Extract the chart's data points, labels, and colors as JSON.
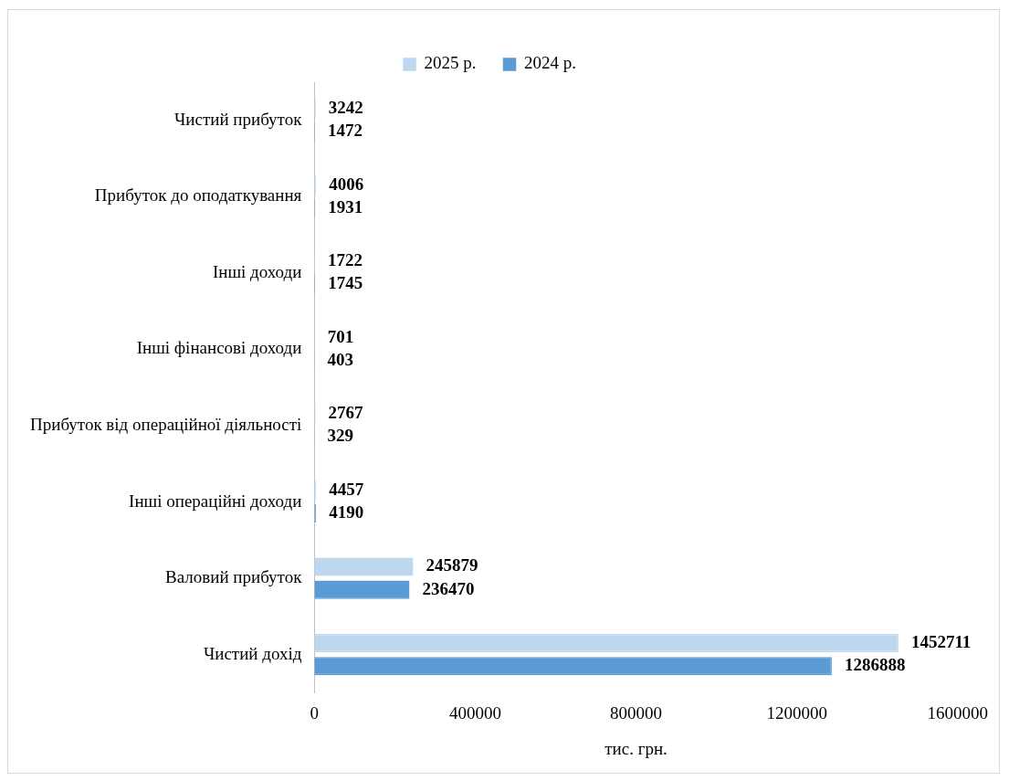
{
  "chart_data": {
    "type": "bar",
    "orientation": "horizontal",
    "xlabel": "тис. грн.",
    "categories": [
      "Чистий прибуток",
      "Прибуток до оподаткування",
      "Інші доходи",
      "Інші фінансові доходи",
      "Прибуток від операційної діяльності",
      "Інші операційні доходи",
      "Валовий прибуток",
      "Чистий дохід"
    ],
    "series": [
      {
        "name": "2025 р.",
        "color": "#bdd7ee",
        "values": [
          3242,
          4006,
          1722,
          701,
          2767,
          4457,
          245879,
          1452711
        ]
      },
      {
        "name": "2024 р.",
        "color": "#5b9bd5",
        "values": [
          1472,
          1931,
          1745,
          403,
          329,
          4190,
          236470,
          1286888
        ]
      }
    ],
    "xlim": [
      0,
      1600000
    ],
    "xticks": [
      0,
      400000,
      800000,
      1200000,
      1600000
    ],
    "grid": false,
    "legend": "top",
    "data_labels": true
  }
}
